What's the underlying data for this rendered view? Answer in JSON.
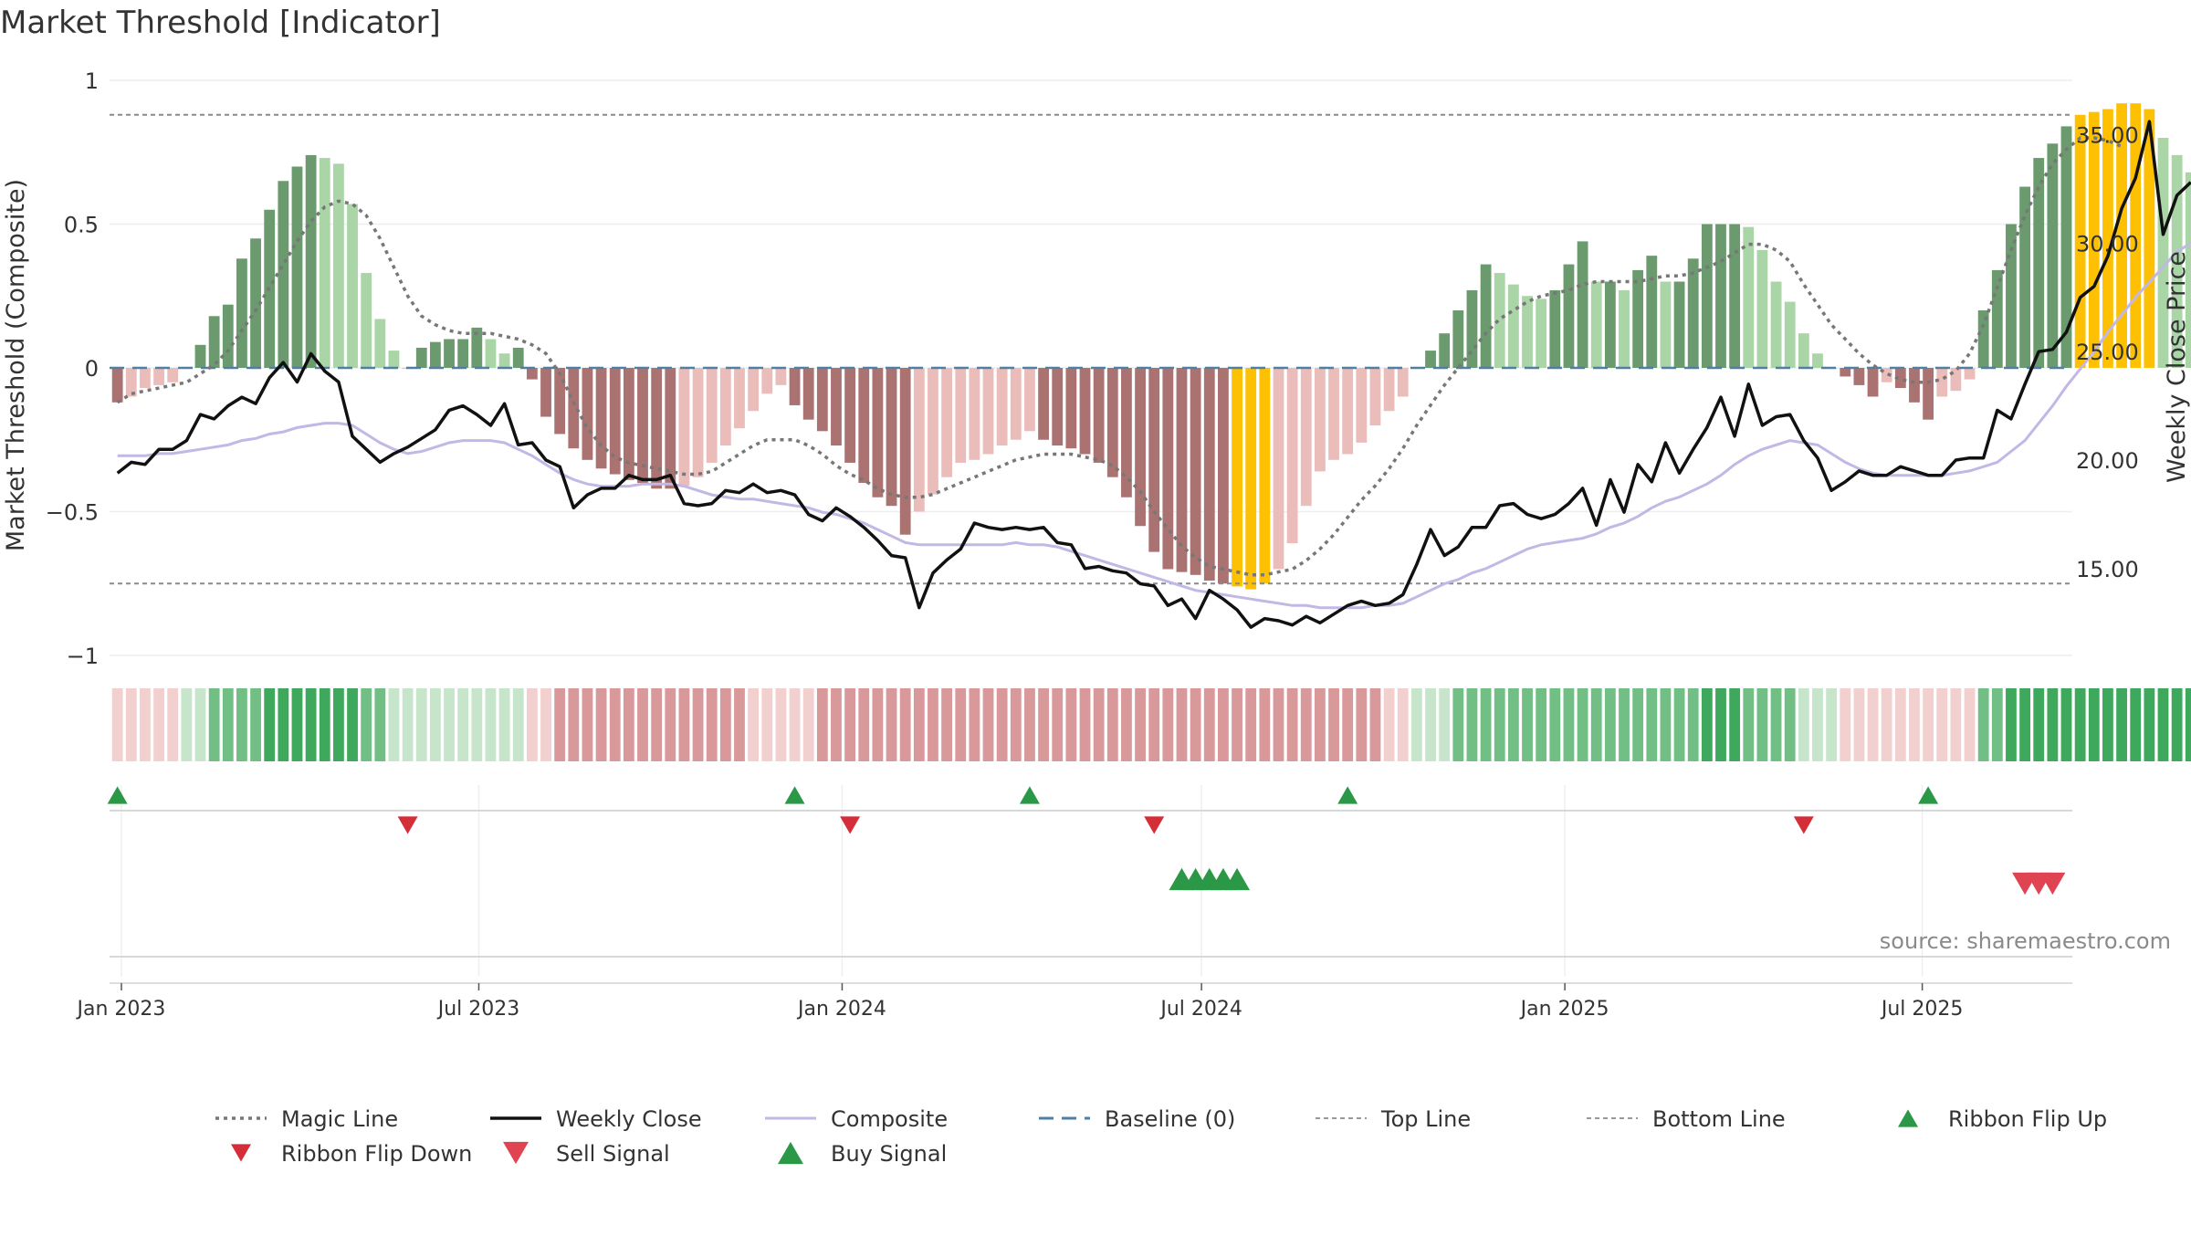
{
  "chart_data": {
    "type": "bar",
    "title": "Market Threshold [Indicator]",
    "ylabel": "Market Threshold (Composite)",
    "ylabel_right": "Weekly Close Price",
    "source": "source: sharemaestro.com",
    "ylim": [
      -1,
      1
    ],
    "ylim_right": [
      11,
      37.5
    ],
    "y_ticks": [
      {
        "value": 1,
        "label": "1"
      },
      {
        "value": 0.5,
        "label": "0.5"
      },
      {
        "value": 0,
        "label": "0"
      },
      {
        "value": -0.5,
        "label": "−0.5"
      },
      {
        "value": -1,
        "label": "−1"
      }
    ],
    "y_ticks_right": [
      {
        "value": 35,
        "label": "35.00"
      },
      {
        "value": 30,
        "label": "30.00"
      },
      {
        "value": 25,
        "label": "25.00"
      },
      {
        "value": 20,
        "label": "20.00"
      },
      {
        "value": 15,
        "label": "15.00"
      }
    ],
    "x_range": [
      "2022-12-26",
      "2025-09-15"
    ],
    "x_ticks": [
      {
        "date": "2023-01-01",
        "label": "Jan 2023"
      },
      {
        "date": "2023-07-01",
        "label": "Jul 2023"
      },
      {
        "date": "2024-01-01",
        "label": "Jan 2024"
      },
      {
        "date": "2024-07-01",
        "label": "Jul 2024"
      },
      {
        "date": "2025-01-01",
        "label": "Jan 2025"
      },
      {
        "date": "2025-07-01",
        "label": "Jul 2025"
      }
    ],
    "start_date": "2022-12-30",
    "interval_days": 7,
    "top_line": 0.88,
    "bottom_line": -0.75,
    "baseline": 0,
    "composite": [
      -0.12,
      -0.1,
      -0.07,
      -0.06,
      -0.05,
      0.0,
      0.08,
      0.18,
      0.22,
      0.38,
      0.45,
      0.55,
      0.65,
      0.7,
      0.74,
      0.73,
      0.71,
      0.57,
      0.33,
      0.17,
      0.06,
      0.0,
      0.07,
      0.09,
      0.1,
      0.1,
      0.14,
      0.1,
      0.05,
      0.07,
      -0.04,
      -0.17,
      -0.23,
      -0.28,
      -0.32,
      -0.35,
      -0.37,
      -0.39,
      -0.4,
      -0.42,
      -0.42,
      -0.41,
      -0.38,
      -0.33,
      -0.27,
      -0.21,
      -0.15,
      -0.09,
      -0.06,
      -0.13,
      -0.18,
      -0.22,
      -0.27,
      -0.33,
      -0.4,
      -0.45,
      -0.48,
      -0.58,
      -0.5,
      -0.44,
      -0.38,
      -0.33,
      -0.32,
      -0.3,
      -0.27,
      -0.25,
      -0.22,
      -0.25,
      -0.27,
      -0.28,
      -0.3,
      -0.33,
      -0.38,
      -0.45,
      -0.55,
      -0.64,
      -0.7,
      -0.71,
      -0.72,
      -0.74,
      -0.75,
      -0.76,
      -0.77,
      -0.75,
      -0.7,
      -0.61,
      -0.48,
      -0.36,
      -0.32,
      -0.3,
      -0.26,
      -0.2,
      -0.15,
      -0.1,
      0.0,
      0.06,
      0.12,
      0.2,
      0.27,
      0.36,
      0.33,
      0.29,
      0.25,
      0.24,
      0.27,
      0.36,
      0.44,
      0.3,
      0.3,
      0.27,
      0.34,
      0.39,
      0.3,
      0.3,
      0.38,
      0.5,
      0.5,
      0.5,
      0.49,
      0.41,
      0.3,
      0.23,
      0.12,
      0.05,
      0.0,
      -0.03,
      -0.06,
      -0.1,
      -0.05,
      -0.07,
      -0.12,
      -0.18,
      -0.1,
      -0.08,
      -0.04,
      0.2,
      0.34,
      0.5,
      0.63,
      0.73,
      0.78,
      0.84,
      0.88,
      0.89,
      0.9,
      0.92,
      0.92,
      0.9,
      0.8,
      0.74,
      0.68
    ],
    "weekly_close": [
      19.4,
      19.9,
      19.8,
      20.5,
      20.5,
      20.9,
      22.1,
      21.9,
      22.5,
      22.9,
      22.6,
      23.8,
      24.5,
      23.6,
      24.9,
      24.1,
      23.6,
      21.1,
      20.5,
      19.9,
      20.3,
      20.6,
      21.0,
      21.4,
      22.3,
      22.5,
      22.1,
      21.6,
      22.6,
      20.7,
      20.8,
      20.0,
      19.7,
      17.8,
      18.4,
      18.7,
      18.7,
      19.3,
      19.1,
      19.1,
      19.3,
      18.0,
      17.9,
      18.0,
      18.6,
      18.5,
      18.9,
      18.5,
      18.6,
      18.4,
      17.5,
      17.2,
      17.8,
      17.4,
      16.9,
      16.3,
      15.6,
      15.5,
      13.2,
      14.8,
      15.4,
      15.9,
      17.1,
      16.9,
      16.8,
      16.9,
      16.8,
      16.9,
      16.2,
      16.1,
      15.0,
      15.1,
      14.9,
      14.8,
      14.3,
      14.2,
      13.3,
      13.6,
      12.7,
      14.0,
      13.6,
      13.1,
      12.3,
      12.7,
      12.6,
      12.4,
      12.8,
      12.5,
      12.9,
      13.3,
      13.5,
      13.3,
      13.4,
      13.8,
      15.2,
      16.8,
      15.6,
      16.0,
      16.9,
      16.9,
      17.9,
      18.0,
      17.5,
      17.3,
      17.5,
      18.0,
      18.7,
      17.0,
      19.1,
      17.6,
      19.8,
      19.0,
      20.8,
      19.4,
      20.5,
      21.5,
      22.9,
      21.1,
      23.5,
      21.6,
      22.0,
      22.1,
      20.9,
      20.1,
      18.6,
      19.0,
      19.5,
      19.3,
      19.3,
      19.7,
      19.5,
      19.3,
      19.3,
      20.0,
      20.1,
      20.1,
      22.3,
      21.9,
      23.5,
      25.0,
      25.1,
      25.9,
      27.5,
      28.0,
      29.4,
      31.6,
      33.0,
      35.6,
      30.4,
      32.2,
      32.8
    ],
    "composite_price": [
      20.2,
      20.2,
      20.2,
      20.3,
      20.3,
      20.4,
      20.5,
      20.6,
      20.7,
      20.9,
      21.0,
      21.2,
      21.3,
      21.5,
      21.6,
      21.7,
      21.7,
      21.6,
      21.2,
      20.8,
      20.5,
      20.3,
      20.4,
      20.6,
      20.8,
      20.9,
      20.9,
      20.9,
      20.8,
      20.5,
      20.2,
      19.8,
      19.4,
      19.1,
      18.9,
      18.8,
      18.8,
      18.8,
      18.9,
      18.9,
      18.9,
      18.8,
      18.6,
      18.4,
      18.3,
      18.2,
      18.2,
      18.1,
      18.0,
      17.9,
      17.8,
      17.6,
      17.5,
      17.3,
      17.1,
      16.8,
      16.5,
      16.2,
      16.1,
      16.1,
      16.1,
      16.1,
      16.1,
      16.1,
      16.1,
      16.2,
      16.1,
      16.1,
      16.0,
      15.8,
      15.6,
      15.4,
      15.2,
      15.0,
      14.8,
      14.6,
      14.4,
      14.2,
      14.0,
      13.9,
      13.8,
      13.7,
      13.6,
      13.5,
      13.4,
      13.3,
      13.3,
      13.2,
      13.2,
      13.2,
      13.2,
      13.3,
      13.3,
      13.4,
      13.7,
      14.0,
      14.3,
      14.5,
      14.8,
      15.0,
      15.3,
      15.6,
      15.9,
      16.1,
      16.2,
      16.3,
      16.4,
      16.6,
      16.9,
      17.1,
      17.4,
      17.8,
      18.1,
      18.3,
      18.6,
      18.9,
      19.3,
      19.8,
      20.2,
      20.5,
      20.7,
      20.9,
      20.8,
      20.7,
      20.3,
      19.9,
      19.6,
      19.4,
      19.3,
      19.3,
      19.3,
      19.3,
      19.3,
      19.4,
      19.5,
      19.7,
      19.9,
      20.4,
      20.9,
      21.7,
      22.5,
      23.4,
      24.2,
      25.0,
      25.9,
      26.7,
      27.5,
      28.2,
      28.9,
      29.6,
      30.0,
      30.3,
      30.8
    ],
    "magic_line": [
      -0.12,
      -0.09,
      -0.08,
      -0.07,
      -0.06,
      -0.05,
      -0.02,
      0.01,
      0.06,
      0.13,
      0.2,
      0.28,
      0.36,
      0.44,
      0.51,
      0.56,
      0.58,
      0.57,
      0.53,
      0.45,
      0.35,
      0.25,
      0.18,
      0.15,
      0.13,
      0.12,
      0.12,
      0.12,
      0.11,
      0.1,
      0.08,
      0.05,
      -0.02,
      -0.12,
      -0.21,
      -0.27,
      -0.31,
      -0.33,
      -0.34,
      -0.35,
      -0.36,
      -0.37,
      -0.37,
      -0.36,
      -0.33,
      -0.3,
      -0.27,
      -0.25,
      -0.25,
      -0.25,
      -0.27,
      -0.3,
      -0.34,
      -0.37,
      -0.39,
      -0.42,
      -0.44,
      -0.45,
      -0.45,
      -0.44,
      -0.42,
      -0.4,
      -0.38,
      -0.36,
      -0.34,
      -0.32,
      -0.31,
      -0.3,
      -0.3,
      -0.3,
      -0.31,
      -0.32,
      -0.34,
      -0.38,
      -0.43,
      -0.5,
      -0.56,
      -0.62,
      -0.66,
      -0.69,
      -0.7,
      -0.71,
      -0.72,
      -0.72,
      -0.71,
      -0.7,
      -0.67,
      -0.63,
      -0.58,
      -0.52,
      -0.46,
      -0.41,
      -0.35,
      -0.28,
      -0.2,
      -0.13,
      -0.06,
      0.0,
      0.06,
      0.12,
      0.17,
      0.2,
      0.23,
      0.25,
      0.26,
      0.27,
      0.29,
      0.3,
      0.3,
      0.3,
      0.3,
      0.31,
      0.32,
      0.32,
      0.33,
      0.35,
      0.37,
      0.4,
      0.43,
      0.43,
      0.41,
      0.37,
      0.29,
      0.22,
      0.15,
      0.1,
      0.05,
      0.01,
      -0.02,
      -0.04,
      -0.05,
      -0.05,
      -0.04,
      -0.01,
      0.05,
      0.15,
      0.28,
      0.41,
      0.53,
      0.63,
      0.71,
      0.76,
      0.8,
      0.8,
      0.79,
      0.77
    ],
    "bar_colors": {
      "dark_green": "#6a9a6d",
      "light_green": "#a9d5a7",
      "dark_red": "#aa7372",
      "light_red": "#ebbdba",
      "extreme": "#fdc003"
    },
    "ribbon_colors": {
      "strong_green": "#3ea95c",
      "green": "#72bf86",
      "light_green": "#c6e5cb",
      "red": "#d9999a",
      "light_red": "#f2d0cf"
    },
    "line_colors": {
      "magic_line": "#777777",
      "weekly_close": "#111111",
      "composite": "#c3b7e6",
      "baseline": "#4f7fa3",
      "top_bottom": "#888888",
      "buy": "#2a9846",
      "sell": "#d42e39"
    },
    "ribbon_flip_up": [
      "2022-12-30",
      "2023-12-08",
      "2024-04-05",
      "2024-09-13",
      "2025-07-04"
    ],
    "ribbon_flip_down": [
      "2023-05-26",
      "2024-01-05",
      "2024-06-07",
      "2025-05-02"
    ],
    "buy_signal": [
      "2024-06-21",
      "2024-06-28",
      "2024-07-05",
      "2024-07-12",
      "2024-07-19"
    ],
    "sell_signal": [
      "2025-08-22",
      "2025-08-29",
      "2025-09-05"
    ],
    "legend": [
      {
        "label": "Magic Line",
        "kind": "dotted",
        "color": "#777777"
      },
      {
        "label": "Weekly Close",
        "kind": "solid",
        "color": "#111111"
      },
      {
        "label": "Composite",
        "kind": "solid-light",
        "color": "#c3b7e6"
      },
      {
        "label": "Baseline (0)",
        "kind": "dashed",
        "color": "#4f7fa3"
      },
      {
        "label": "Top Line",
        "kind": "dotted-thin",
        "color": "#999999"
      },
      {
        "label": "Bottom Line",
        "kind": "dotted-thin",
        "color": "#999999"
      },
      {
        "label": "Ribbon Flip Up",
        "kind": "tri-up-small",
        "color": "#2a9846"
      },
      {
        "label": "Ribbon Flip Down",
        "kind": "tri-down-small",
        "color": "#d42e39"
      },
      {
        "label": "Sell Signal",
        "kind": "tri-down",
        "color": "#e04452"
      },
      {
        "label": "Buy Signal",
        "kind": "tri-up",
        "color": "#2a9846"
      }
    ]
  }
}
